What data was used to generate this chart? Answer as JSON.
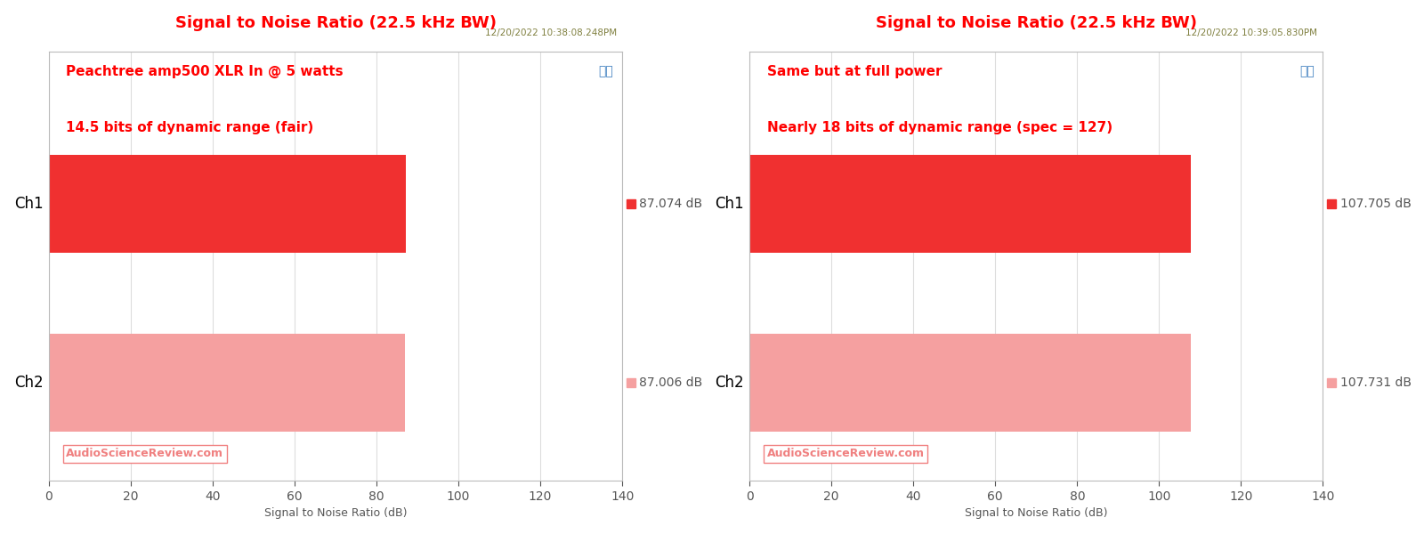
{
  "left": {
    "title": "Signal to Noise Ratio (22.5 kHz BW)",
    "timestamp": "12/20/2022 10:38:08.248PM",
    "annotation_line1": "Peachtree amp500 XLR In @ 5 watts",
    "annotation_line2": "14.5 bits of dynamic range (fair)",
    "channels": [
      "Ch1",
      "Ch2"
    ],
    "values": [
      87.074,
      87.006
    ],
    "bar_colors": [
      "#f03030",
      "#f5a0a0"
    ],
    "legend_labels": [
      "87.074 dB",
      "87.006 dB"
    ],
    "xlim": [
      0,
      140
    ],
    "xticks": [
      0,
      20,
      40,
      60,
      80,
      100,
      120,
      140
    ],
    "xlabel": "Signal to Noise Ratio (dB)",
    "watermark": "AudioScienceReview.com"
  },
  "right": {
    "title": "Signal to Noise Ratio (22.5 kHz BW)",
    "timestamp": "12/20/2022 10:39:05.830PM",
    "annotation_line1": "Same but at full power",
    "annotation_line2": "Nearly 18 bits of dynamic range (spec = 127)",
    "channels": [
      "Ch1",
      "Ch2"
    ],
    "values": [
      107.705,
      107.731
    ],
    "bar_colors": [
      "#f03030",
      "#f5a0a0"
    ],
    "legend_labels": [
      "107.705 dB",
      "107.731 dB"
    ],
    "xlim": [
      0,
      140
    ],
    "xticks": [
      0,
      20,
      40,
      60,
      80,
      100,
      120,
      140
    ],
    "xlabel": "Signal to Noise Ratio (dB)",
    "watermark": "AudioScienceReview.com"
  },
  "title_color": "#ff0000",
  "annotation_color": "#ff0000",
  "timestamp_color": "#808040",
  "watermark_color": "#f08080",
  "xlabel_color": "#555555",
  "tick_color": "#555555",
  "channel_label_color": "#000000",
  "bg_color": "#ffffff",
  "plot_bg_color": "#ffffff",
  "grid_color": "#dddddd",
  "ap_logo_color": "#4080c0",
  "fig_width": 16.0,
  "fig_height": 6.0
}
